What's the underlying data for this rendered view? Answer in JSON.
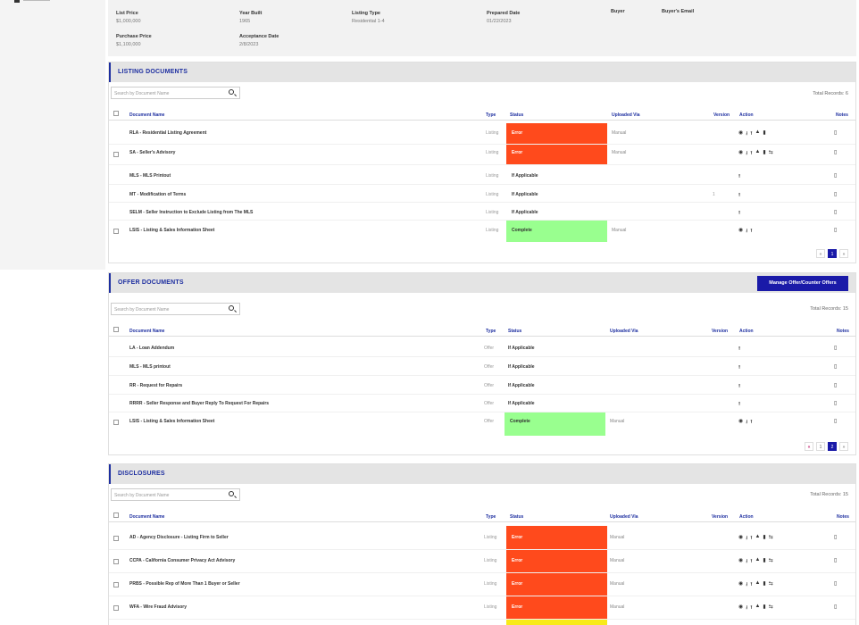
{
  "info": {
    "fields": [
      {
        "label": "List Price",
        "value": "$1,000,000"
      },
      {
        "label": "Year Built",
        "value": "1965"
      },
      {
        "label": "Listing Type",
        "value": "Residential 1-4"
      },
      {
        "label": "Prepared Date",
        "value": "01/22/2023"
      },
      {
        "label": "Buyer",
        "value": ""
      },
      {
        "label": "Buyer's Email",
        "value": ""
      },
      {
        "label": "Purchase Price",
        "value": "$1,100,000"
      },
      {
        "label": "Acceptance Date",
        "value": "2/8/2023"
      }
    ]
  },
  "columns": {
    "name": "Document Name",
    "type": "Type",
    "status": "Status",
    "uploaded": "Uploaded Via",
    "version": "Version",
    "action": "Action",
    "notes": "Notes"
  },
  "search_placeholder": "Search by Document Name",
  "listing": {
    "title": "LISTING DOCUMENTS",
    "total": "Total Records: 6",
    "rows": [
      {
        "name": "RLA - Residential Listing Agreement",
        "type": "Listing",
        "status": "Error",
        "uploaded": "Manual",
        "version": ""
      },
      {
        "name": "SA - Seller's Advisory",
        "type": "Listing",
        "status": "Error",
        "uploaded": "Manual",
        "version": ""
      },
      {
        "name": "MLS - MLS Printout",
        "type": "Listing",
        "status": "If Applicable",
        "uploaded": "",
        "version": ""
      },
      {
        "name": "MT - Modification of Terms",
        "type": "Listing",
        "status": "If Applicable",
        "uploaded": "",
        "version": "1"
      },
      {
        "name": "SELM - Seller Instruction to Exclude Listing from The MLS",
        "type": "Listing",
        "status": "If Applicable",
        "uploaded": "",
        "version": ""
      },
      {
        "name": "LSIS - Listing & Sales Information Sheet",
        "type": "Listing",
        "status": "Complete",
        "uploaded": "Manual",
        "version": ""
      }
    ],
    "pages": [
      "«",
      "1",
      "»"
    ]
  },
  "offer": {
    "title": "OFFER DOCUMENTS",
    "button": "Manage Offer/Counter Offers",
    "total": "Total Records: 15",
    "rows": [
      {
        "name": "LA - Loan Addendum",
        "type": "Offer",
        "status": "If Applicable",
        "uploaded": ""
      },
      {
        "name": "MLS - MLS printout",
        "type": "Offer",
        "status": "If Applicable",
        "uploaded": ""
      },
      {
        "name": "RR - Request for Repairs",
        "type": "Offer",
        "status": "If Applicable",
        "uploaded": ""
      },
      {
        "name": "RRRR - Seller Response and Buyer Reply To Request For Repairs",
        "type": "Offer",
        "status": "If Applicable",
        "uploaded": ""
      },
      {
        "name": "LSIS - Listing & Sales Information Sheet",
        "type": "Offer",
        "status": "Complete",
        "uploaded": "Manual"
      }
    ],
    "pages": [
      "«",
      "1",
      "2",
      "»"
    ]
  },
  "disclosures": {
    "title": "DISCLOSURES",
    "total": "Total Records: 15",
    "rows": [
      {
        "name": "AD - Agency Disclosure - Listing Firm to Seller",
        "type": "Listing",
        "status": "Error",
        "uploaded": "Manual"
      },
      {
        "name": "CCPA - California Consumer Privacy Act Advisory",
        "type": "Listing",
        "status": "Error",
        "uploaded": "Manual"
      },
      {
        "name": "PRBS - Possible Rep of More Than 1 Buyer or Seller",
        "type": "Listing",
        "status": "Error",
        "uploaded": "Manual"
      },
      {
        "name": "WFA - Wire Fraud Advisory",
        "type": "Listing",
        "status": "Error",
        "uploaded": "Manual"
      }
    ]
  },
  "colors": {
    "accent": "#1e2fa0",
    "error": "#ff4a1c",
    "complete": "#99ff8f",
    "button": "#1a1aa8"
  }
}
